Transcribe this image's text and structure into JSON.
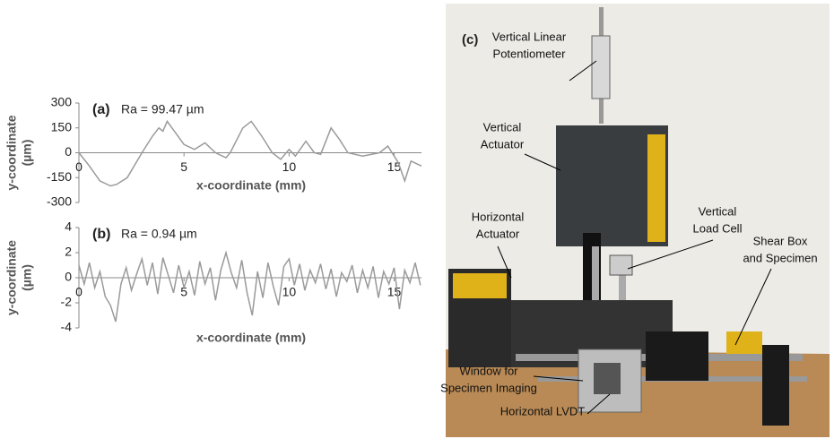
{
  "chart_data": [
    {
      "type": "line",
      "panel_label": "(a)",
      "annotation": "Ra = 99.47 µm",
      "y_label": [
        "y-coordinate",
        "(µm)"
      ],
      "x_label": "x-coordinate (mm)",
      "color": "#9a9a9a",
      "x": [
        0,
        0.5,
        1,
        1.5,
        1.8,
        2.3,
        3,
        3.5,
        3.8,
        4,
        4.2,
        4.6,
        5,
        5.5,
        6,
        6.5,
        7,
        7.2,
        7.8,
        8.2,
        8.7,
        9.2,
        9.6,
        10,
        10.3,
        10.8,
        11.2,
        11.5,
        12,
        12.4,
        12.8,
        13.5,
        14.3,
        14.7,
        15.2,
        15.5,
        15.8,
        16.3
      ],
      "values": [
        0,
        -80,
        -170,
        -200,
        -190,
        -150,
        0,
        100,
        150,
        130,
        190,
        120,
        50,
        20,
        60,
        0,
        -30,
        0,
        150,
        190,
        100,
        0,
        -40,
        20,
        -20,
        70,
        0,
        -10,
        150,
        80,
        0,
        -20,
        0,
        40,
        -60,
        -170,
        -50,
        -80
      ],
      "xlim": [
        0,
        16.3
      ],
      "ylim": [
        -300,
        300
      ],
      "xticks": [
        0,
        5,
        10,
        15
      ],
      "yticks": [
        -300,
        -150,
        0,
        150,
        300
      ]
    },
    {
      "type": "line",
      "panel_label": "(b)",
      "annotation": "Ra = 0.94 µm",
      "y_label": [
        "y-coordinate",
        "(µm)"
      ],
      "x_label": "x-coordinate (mm)",
      "color": "#9a9a9a",
      "x": [
        0,
        0.25,
        0.5,
        0.75,
        1,
        1.25,
        1.5,
        1.75,
        2,
        2.25,
        2.5,
        2.75,
        3,
        3.25,
        3.5,
        3.75,
        4,
        4.25,
        4.5,
        4.75,
        5,
        5.25,
        5.5,
        5.75,
        6,
        6.25,
        6.5,
        6.75,
        7,
        7.25,
        7.5,
        7.75,
        8,
        8.25,
        8.5,
        8.75,
        9,
        9.25,
        9.5,
        9.75,
        10,
        10.25,
        10.5,
        10.75,
        11,
        11.25,
        11.5,
        11.75,
        12,
        12.25,
        12.5,
        12.75,
        13,
        13.25,
        13.5,
        13.75,
        14,
        14.25,
        14.5,
        14.75,
        15,
        15.25,
        15.5,
        15.75,
        16,
        16.25
      ],
      "values": [
        1.0,
        -0.5,
        1.2,
        -0.8,
        0.5,
        -1.5,
        -2.2,
        -3.5,
        -0.5,
        0.8,
        -1.0,
        0.3,
        1.5,
        -0.6,
        1.2,
        -1.3,
        1.6,
        0.2,
        -1.2,
        1.0,
        -0.8,
        0.5,
        -1.4,
        1.3,
        -0.5,
        0.8,
        -1.8,
        0.6,
        2.0,
        0.4,
        -0.8,
        1.4,
        -1.2,
        -3.0,
        0.5,
        -1.6,
        1.2,
        -0.7,
        -2.2,
        0.9,
        1.5,
        -0.6,
        1.1,
        -1.0,
        0.6,
        -0.4,
        1.1,
        -0.9,
        0.7,
        -1.5,
        0.4,
        -0.3,
        1.0,
        -1.2,
        0.6,
        -0.8,
        0.9,
        -1.6,
        0.5,
        -0.5,
        0.8,
        -2.5,
        0.6,
        -0.4,
        1.2,
        -0.6
      ],
      "xlim": [
        0,
        16.3
      ],
      "ylim": [
        -4,
        4
      ],
      "xticks": [
        0,
        5,
        10,
        15
      ],
      "yticks": [
        -4,
        -2,
        0,
        2,
        4
      ]
    }
  ],
  "photo": {
    "panel_label": "(c)",
    "labels": [
      {
        "lines": [
          "Vertical Linear",
          "Potentiometer"
        ]
      },
      {
        "lines": [
          "Vertical",
          "Actuator"
        ]
      },
      {
        "lines": [
          "Vertical",
          "Load Cell"
        ]
      },
      {
        "lines": [
          "Horizontal",
          "Actuator"
        ]
      },
      {
        "lines": [
          "Shear Box",
          "and Specimen"
        ]
      },
      {
        "lines": [
          "Window for",
          "Specimen Imaging"
        ]
      },
      {
        "lines": [
          "Horizontal LVDT"
        ]
      }
    ]
  }
}
